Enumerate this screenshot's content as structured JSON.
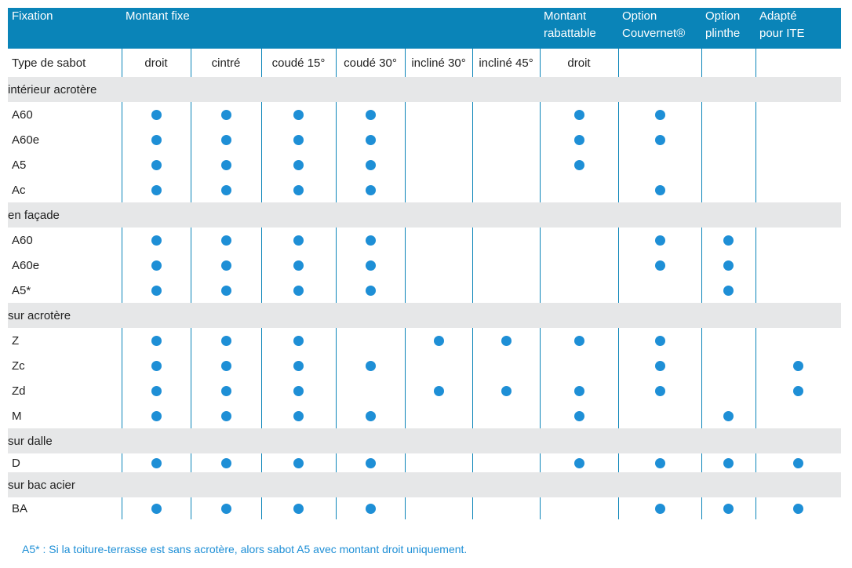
{
  "header": {
    "fixation": "Fixation",
    "montant_fixe": "Montant fixe",
    "montant_rabattable_1": "Montant",
    "montant_rabattable_2": "rabattable",
    "option_couvernet_1": "Option",
    "option_couvernet_2": "Couvernet®",
    "option_plinthe_1": "Option",
    "option_plinthe_2": "plinthe",
    "adapte_ite_1": "Adapté",
    "adapte_ite_2": "pour ITE"
  },
  "subheader": {
    "label": "Type de sabot",
    "cols": [
      "droit",
      "cintré",
      "coudé 15°",
      "coudé 30°",
      "incliné 30°",
      "incliné 45°",
      "droit",
      "",
      "",
      ""
    ]
  },
  "sections": [
    {
      "title": "intérieur acrotère",
      "rows": [
        {
          "name": "A60",
          "marks": [
            1,
            1,
            1,
            1,
            0,
            0,
            1,
            1,
            0,
            0
          ]
        },
        {
          "name": "A60e",
          "marks": [
            1,
            1,
            1,
            1,
            0,
            0,
            1,
            1,
            0,
            0
          ]
        },
        {
          "name": "A5",
          "marks": [
            1,
            1,
            1,
            1,
            0,
            0,
            1,
            0,
            0,
            0
          ]
        },
        {
          "name": "Ac",
          "marks": [
            1,
            1,
            1,
            1,
            0,
            0,
            0,
            1,
            0,
            0
          ]
        }
      ]
    },
    {
      "title": "en façade",
      "rows": [
        {
          "name": "A60",
          "marks": [
            1,
            1,
            1,
            1,
            0,
            0,
            0,
            1,
            1,
            0
          ]
        },
        {
          "name": "A60e",
          "marks": [
            1,
            1,
            1,
            1,
            0,
            0,
            0,
            1,
            1,
            0
          ]
        },
        {
          "name": "A5*",
          "marks": [
            1,
            1,
            1,
            1,
            0,
            0,
            0,
            0,
            1,
            0
          ]
        }
      ]
    },
    {
      "title": "sur acrotère",
      "rows": [
        {
          "name": "Z",
          "marks": [
            1,
            1,
            1,
            0,
            1,
            1,
            1,
            1,
            0,
            0
          ]
        },
        {
          "name": "Zc",
          "marks": [
            1,
            1,
            1,
            1,
            0,
            0,
            0,
            1,
            0,
            1
          ]
        },
        {
          "name": "Zd",
          "marks": [
            1,
            1,
            1,
            0,
            1,
            1,
            1,
            1,
            0,
            1
          ]
        },
        {
          "name": "M",
          "marks": [
            1,
            1,
            1,
            1,
            0,
            0,
            1,
            0,
            1,
            0
          ]
        }
      ]
    },
    {
      "title": "sur dalle",
      "rows": [
        {
          "name": "D",
          "marks": [
            1,
            1,
            1,
            1,
            0,
            0,
            1,
            1,
            1,
            1
          ]
        }
      ]
    },
    {
      "title": "sur bac acier",
      "rows": [
        {
          "name": "BA",
          "marks": [
            1,
            1,
            1,
            1,
            0,
            0,
            0,
            1,
            1,
            1
          ]
        }
      ]
    }
  ],
  "footnote": "A5* : Si la toiture-terrasse est sans acrotère, alors sabot A5 avec montant droit uniquement.",
  "colors": {
    "header_bg": "#0a84b8",
    "dot": "#1e8fd6",
    "section_bg": "#e6e7e8"
  }
}
